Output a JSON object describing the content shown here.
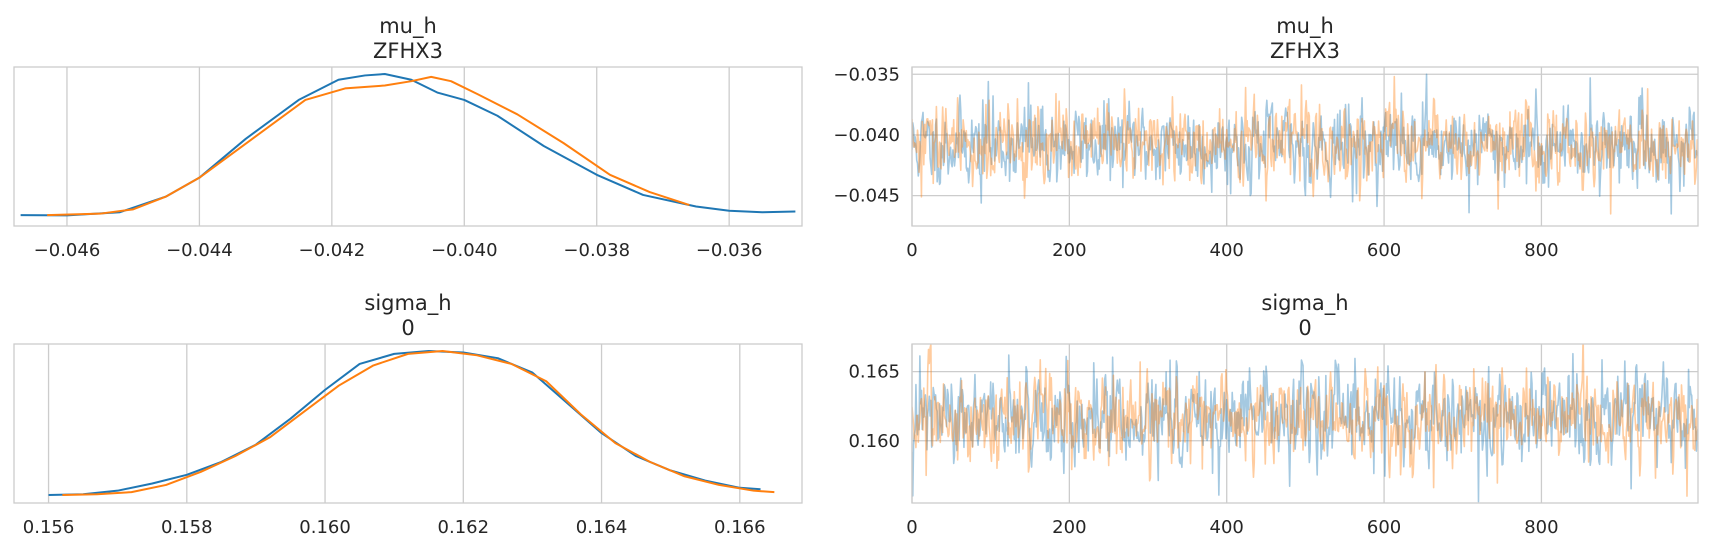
{
  "colors": {
    "chain_0": "#1f77b4",
    "chain_1": "#ff7f0e",
    "grid": "#cccccc",
    "text": "#262626"
  },
  "chart_data": [
    {
      "id": "mu_h_kde",
      "type": "line",
      "title": "mu_h",
      "subtitle": "ZFHX3",
      "xlim": [
        -0.0468,
        -0.0349
      ],
      "x_ticks": [
        -0.046,
        -0.044,
        -0.042,
        -0.04,
        -0.038,
        -0.036
      ],
      "x_tick_labels": [
        "−0.046",
        "−0.044",
        "−0.042",
        "−0.040",
        "−0.038",
        "−0.036"
      ],
      "y_ticks": [],
      "grid": "vertical",
      "series": [
        {
          "color": "#1f77b4",
          "x": [
            -0.0467,
            -0.046,
            -0.0452,
            -0.0445,
            -0.044,
            -0.0433,
            -0.0425,
            -0.0419,
            -0.0415,
            -0.0412,
            -0.0408,
            -0.0404,
            -0.04,
            -0.0395,
            -0.0388,
            -0.038,
            -0.0373,
            -0.0365,
            -0.036,
            -0.0355,
            -0.035
          ],
          "y": [
            0.02,
            0.018,
            0.04,
            0.15,
            0.28,
            0.55,
            0.82,
            0.96,
            0.99,
            1.0,
            0.96,
            0.87,
            0.82,
            0.71,
            0.5,
            0.3,
            0.16,
            0.08,
            0.05,
            0.04,
            0.045
          ]
        },
        {
          "color": "#ff7f0e",
          "x": [
            -0.0463,
            -0.0455,
            -0.045,
            -0.0445,
            -0.044,
            -0.0432,
            -0.0424,
            -0.0418,
            -0.0412,
            -0.0408,
            -0.0405,
            -0.0402,
            -0.0398,
            -0.0392,
            -0.0385,
            -0.0378,
            -0.0372,
            -0.0366
          ],
          "y": [
            0.02,
            0.03,
            0.06,
            0.15,
            0.28,
            0.55,
            0.82,
            0.9,
            0.92,
            0.95,
            0.98,
            0.95,
            0.86,
            0.72,
            0.52,
            0.3,
            0.18,
            0.09
          ]
        }
      ]
    },
    {
      "id": "mu_h_trace",
      "type": "line",
      "title": "mu_h",
      "subtitle": "ZFHX3",
      "xlim": [
        0,
        999
      ],
      "ylim": [
        -0.0475,
        -0.0344
      ],
      "x_ticks": [
        0,
        200,
        400,
        600,
        800
      ],
      "x_tick_labels": [
        "0",
        "200",
        "400",
        "600",
        "800"
      ],
      "y_ticks": [
        -0.035,
        -0.04,
        -0.045
      ],
      "y_tick_labels": [
        "−0.035",
        "−0.040",
        "−0.045"
      ],
      "grid": "both",
      "series": [
        {
          "color": "#1f77b4",
          "opacity": 0.4,
          "n_draws": 1000,
          "mean": -0.0408,
          "sd": 0.0016,
          "seed": 11,
          "spikes": [
            [
              97,
              -0.0356
            ],
            [
              148,
              -0.0357
            ],
            [
              654,
              -0.035
            ],
            [
              862,
              -0.0353
            ],
            [
              560,
              -0.0455
            ],
            [
              708,
              -0.0464
            ],
            [
              965,
              -0.0465
            ],
            [
              88,
              -0.0456
            ]
          ]
        },
        {
          "color": "#ff7f0e",
          "opacity": 0.4,
          "n_draws": 1000,
          "mean": -0.0408,
          "sd": 0.0016,
          "seed": 29,
          "spikes": [
            [
              12,
              -0.0451
            ],
            [
              745,
              -0.0461
            ],
            [
              888,
              -0.0465
            ],
            [
              935,
              -0.0362
            ]
          ]
        }
      ]
    },
    {
      "id": "sigma_h_kde",
      "type": "line",
      "title": "sigma_h",
      "subtitle": "0",
      "xlim": [
        0.1555,
        0.1669
      ],
      "x_ticks": [
        0.156,
        0.158,
        0.16,
        0.162,
        0.164,
        0.166
      ],
      "x_tick_labels": [
        "0.156",
        "0.158",
        "0.160",
        "0.162",
        "0.164",
        "0.166"
      ],
      "y_ticks": [],
      "grid": "vertical",
      "series": [
        {
          "color": "#1f77b4",
          "x": [
            0.156,
            0.1565,
            0.157,
            0.1575,
            0.158,
            0.1585,
            0.159,
            0.1595,
            0.16,
            0.1605,
            0.161,
            0.1615,
            0.162,
            0.1625,
            0.163,
            0.1635,
            0.164,
            0.1645,
            0.165,
            0.1655,
            0.166,
            0.1663
          ],
          "y": [
            0.0,
            0.005,
            0.03,
            0.08,
            0.14,
            0.23,
            0.35,
            0.53,
            0.73,
            0.91,
            0.98,
            1.0,
            0.99,
            0.95,
            0.85,
            0.64,
            0.43,
            0.27,
            0.17,
            0.1,
            0.05,
            0.04
          ]
        },
        {
          "color": "#ff7f0e",
          "x": [
            0.1562,
            0.1567,
            0.1572,
            0.1577,
            0.1582,
            0.1587,
            0.1592,
            0.1597,
            0.1602,
            0.1607,
            0.1612,
            0.1617,
            0.1622,
            0.1627,
            0.1632,
            0.1637,
            0.1642,
            0.1647,
            0.1652,
            0.1657,
            0.1662,
            0.1665
          ],
          "y": [
            0.0,
            0.005,
            0.02,
            0.07,
            0.16,
            0.27,
            0.4,
            0.58,
            0.76,
            0.9,
            0.98,
            1.0,
            0.97,
            0.91,
            0.79,
            0.56,
            0.36,
            0.23,
            0.13,
            0.07,
            0.03,
            0.02
          ]
        }
      ]
    },
    {
      "id": "sigma_h_trace",
      "type": "line",
      "title": "sigma_h",
      "subtitle": "0",
      "xlim": [
        0,
        999
      ],
      "ylim": [
        0.1555,
        0.167
      ],
      "x_ticks": [
        0,
        200,
        400,
        600,
        800
      ],
      "x_tick_labels": [
        "0",
        "200",
        "400",
        "600",
        "800"
      ],
      "y_ticks": [
        0.165,
        0.16
      ],
      "y_tick_labels": [
        "0.165",
        "0.160"
      ],
      "grid": "both",
      "series": [
        {
          "color": "#1f77b4",
          "opacity": 0.4,
          "n_draws": 1000,
          "mean": 0.1616,
          "sd": 0.0016,
          "seed": 47,
          "spikes": [
            [
              123,
              0.1662
            ],
            [
              196,
              0.1661
            ],
            [
              720,
              0.1556
            ],
            [
              840,
              0.1663
            ],
            [
              955,
              0.1657
            ]
          ]
        },
        {
          "color": "#ff7f0e",
          "opacity": 0.4,
          "n_draws": 1000,
          "mean": 0.1616,
          "sd": 0.0016,
          "seed": 83,
          "spikes": [
            [
              198,
              0.1658
            ],
            [
              290,
              0.1657
            ],
            [
              985,
              0.156
            ],
            [
              18,
              0.1575
            ]
          ]
        }
      ]
    }
  ]
}
